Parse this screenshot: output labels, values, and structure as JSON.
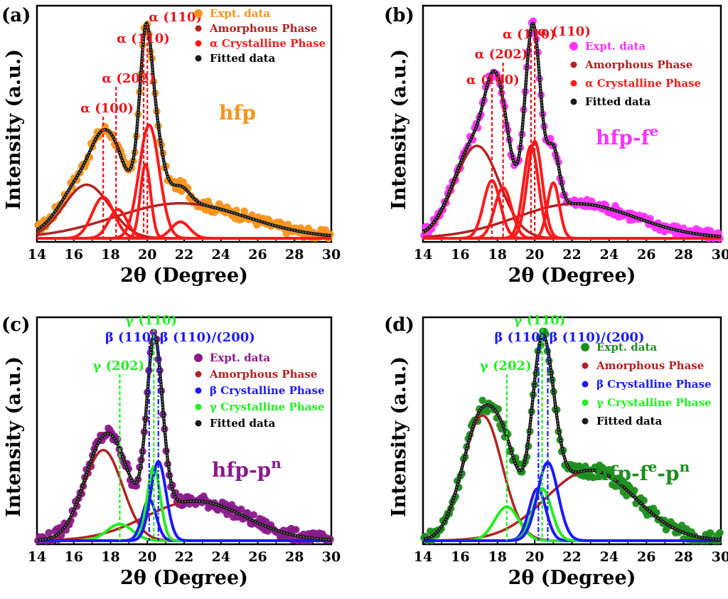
{
  "chart_data": [
    {
      "panel": "(a)",
      "type": "line",
      "sample_label": "hfp",
      "xlabel": "2θ (Degree)",
      "ylabel": "Intensity (a.u.)",
      "xlim": [
        14,
        30
      ],
      "xticks": [
        14,
        16,
        18,
        20,
        22,
        24,
        26,
        28,
        30
      ],
      "colors": {
        "expt": "#f7941d",
        "amorphous": "#b22222",
        "crystal": "#ff1a1a",
        "fitted": "#1a1a1a",
        "sample": "#f7941d",
        "annotation": "#e8141c"
      },
      "legend": [
        "Expt. data",
        "Amorphous Phase",
        "α Crystalline Phase",
        "Fitted data"
      ],
      "annotations": [
        {
          "label": "α (100)",
          "x": 17.6
        },
        {
          "label": "α (202)",
          "x": 18.3
        },
        {
          "label": "α (110)",
          "x": 19.8
        },
        {
          "label": "α (110)",
          "x": 20.0
        }
      ],
      "peaks": [
        {
          "phase": "amorphous",
          "center": 16.7,
          "height": 0.26,
          "width": 1.25
        },
        {
          "phase": "amorphous",
          "center": 21.8,
          "height": 0.17,
          "width": 3.6
        },
        {
          "phase": "crystalline",
          "center": 17.6,
          "height": 0.2,
          "width": 0.6
        },
        {
          "phase": "crystalline",
          "center": 18.4,
          "height": 0.14,
          "width": 0.5
        },
        {
          "phase": "crystalline",
          "center": 19.9,
          "height": 0.36,
          "width": 0.28
        },
        {
          "phase": "crystalline",
          "center": 20.1,
          "height": 0.55,
          "width": 0.55
        },
        {
          "phase": "crystalline",
          "center": 21.8,
          "height": 0.08,
          "width": 0.5
        }
      ],
      "noise_amp": 0.025
    },
    {
      "panel": "(b)",
      "type": "line",
      "sample_label": "hfp-f",
      "sample_sup": "e",
      "xlabel": "2θ (Degree)",
      "ylabel": "Intensity (a.u.)",
      "xlim": [
        14,
        30
      ],
      "xticks": [
        14,
        16,
        18,
        20,
        22,
        24,
        26,
        28,
        30
      ],
      "colors": {
        "expt": "#ff33ff",
        "amorphous": "#b22222",
        "crystal": "#ff1a1a",
        "fitted": "#1a1a1a",
        "sample": "#ff33ff",
        "annotation": "#e8141c"
      },
      "legend": [
        "Expt. data",
        "Amorphous Phase",
        "α Crystalline Phase",
        "Fitted data"
      ],
      "annotations": [
        {
          "label": "α (100)",
          "x": 17.7
        },
        {
          "label": "α (202)",
          "x": 18.3
        },
        {
          "label": "α (110)",
          "x": 19.8
        },
        {
          "label": "α (110)",
          "x": 20.0
        }
      ],
      "peaks": [
        {
          "phase": "amorphous",
          "center": 16.9,
          "height": 0.4,
          "width": 1.2
        },
        {
          "phase": "amorphous",
          "center": 22.2,
          "height": 0.15,
          "width": 3.2
        },
        {
          "phase": "crystalline",
          "center": 17.7,
          "height": 0.25,
          "width": 0.45
        },
        {
          "phase": "crystalline",
          "center": 18.3,
          "height": 0.22,
          "width": 0.45
        },
        {
          "phase": "crystalline",
          "center": 19.8,
          "height": 0.4,
          "width": 0.4
        },
        {
          "phase": "crystalline",
          "center": 20.0,
          "height": 0.42,
          "width": 0.4
        },
        {
          "phase": "crystalline",
          "center": 21.0,
          "height": 0.24,
          "width": 0.32
        }
      ],
      "noise_amp": 0.025
    },
    {
      "panel": "(c)",
      "type": "line",
      "sample_label": "hfp-p",
      "sample_sup": "n",
      "xlabel": "2θ (Degree)",
      "ylabel": "Intensity (a.u.)",
      "xlim": [
        14,
        30
      ],
      "xticks": [
        14,
        16,
        18,
        20,
        22,
        24,
        26,
        28,
        30
      ],
      "colors": {
        "expt": "#8b1a8b",
        "amorphous": "#b22222",
        "crystal_beta": "#1a1aff",
        "crystal_gamma": "#22ee22",
        "fitted": "#1a1a1a",
        "sample": "#8b1a8b",
        "annotation_beta": "#1a1aff",
        "annotation_gamma": "#22ee22"
      },
      "legend": [
        "Expt. data",
        "Amorphous Phase",
        "β Crystalline Phase",
        "γ Crystalline Phase",
        "Fitted data"
      ],
      "annotations": [
        {
          "label": "γ (202)",
          "x": 18.5,
          "phase": "gamma"
        },
        {
          "label": "β (110)",
          "x": 20.1,
          "phase": "beta"
        },
        {
          "label": "γ (110)",
          "x": 20.35,
          "phase": "gamma"
        },
        {
          "label": "β (110)/(200)",
          "x": 20.6,
          "phase": "beta"
        }
      ],
      "peaks": [
        {
          "phase": "amorphous",
          "center": 17.6,
          "height": 0.55,
          "width": 1.05
        },
        {
          "phase": "amorphous",
          "center": 22.6,
          "height": 0.24,
          "width": 2.7
        },
        {
          "phase": "gamma",
          "center": 18.5,
          "height": 0.1,
          "width": 0.7
        },
        {
          "phase": "beta",
          "center": 20.1,
          "height": 0.25,
          "width": 0.38
        },
        {
          "phase": "gamma",
          "center": 20.35,
          "height": 0.45,
          "width": 0.35
        },
        {
          "phase": "beta",
          "center": 20.6,
          "height": 0.48,
          "width": 0.42
        }
      ],
      "noise_amp": 0.03
    },
    {
      "panel": "(d)",
      "type": "line",
      "sample_label": "hfp-f",
      "sample_sup": "e",
      "sample_label2": "-p",
      "sample_sup2": "n",
      "xlabel": "2θ (Degree)",
      "ylabel": "Intensity (a.u.)",
      "xlim": [
        14,
        30
      ],
      "xticks": [
        14,
        16,
        18,
        20,
        22,
        24,
        26,
        28,
        30
      ],
      "colors": {
        "expt": "#1e8f1e",
        "amorphous": "#b22222",
        "crystal_beta": "#1a1aff",
        "crystal_gamma": "#22ee22",
        "fitted": "#1a1a1a",
        "sample": "#1e8f1e",
        "annotation_beta": "#1a1aff",
        "annotation_gamma": "#22ee22"
      },
      "legend": [
        "Expt. data",
        "Amorphous Phase",
        "β Crystalline Phase",
        "γ Crystalline Phase",
        "Fitted data"
      ],
      "annotations": [
        {
          "label": "γ (202)",
          "x": 18.5,
          "phase": "gamma"
        },
        {
          "label": "β (110)",
          "x": 20.2,
          "phase": "beta"
        },
        {
          "label": "γ (110)",
          "x": 20.4,
          "phase": "gamma"
        },
        {
          "label": "β (110)/(200)",
          "x": 20.7,
          "phase": "beta"
        }
      ],
      "peaks": [
        {
          "phase": "amorphous",
          "center": 17.2,
          "height": 0.48,
          "width": 1.05
        },
        {
          "phase": "amorphous",
          "center": 23.0,
          "height": 0.27,
          "width": 2.4
        },
        {
          "phase": "gamma",
          "center": 18.5,
          "height": 0.13,
          "width": 0.65
        },
        {
          "phase": "beta",
          "center": 20.15,
          "height": 0.2,
          "width": 0.45
        },
        {
          "phase": "gamma",
          "center": 20.4,
          "height": 0.2,
          "width": 0.5
        },
        {
          "phase": "beta",
          "center": 20.7,
          "height": 0.3,
          "width": 0.55
        }
      ],
      "noise_amp": 0.035
    }
  ]
}
